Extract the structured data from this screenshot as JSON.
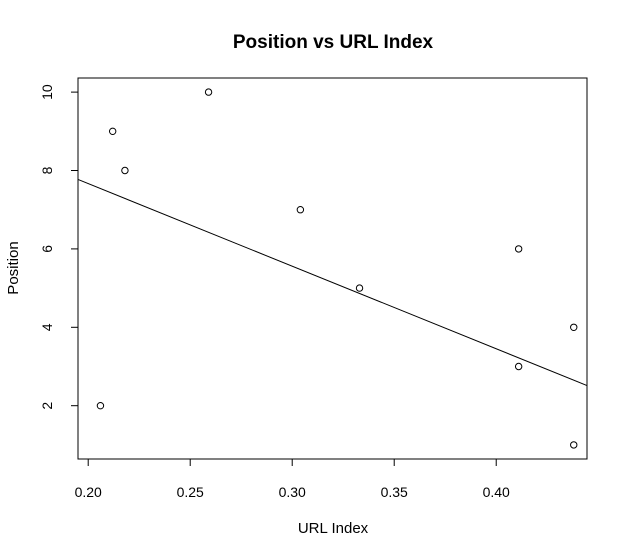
{
  "chart_data": {
    "type": "scatter",
    "title": "Position vs URL Index",
    "xlabel": "URL Index",
    "ylabel": "Position",
    "xlim": [
      0.195,
      0.4445
    ],
    "ylim": [
      0.64,
      10.36
    ],
    "x_ticks": [
      "0.20",
      "0.25",
      "0.30",
      "0.35",
      "0.40"
    ],
    "y_ticks": [
      "2",
      "4",
      "6",
      "8",
      "10"
    ],
    "points": [
      {
        "x": 0.206,
        "y": 2
      },
      {
        "x": 0.212,
        "y": 9
      },
      {
        "x": 0.218,
        "y": 8
      },
      {
        "x": 0.259,
        "y": 10
      },
      {
        "x": 0.304,
        "y": 7
      },
      {
        "x": 0.333,
        "y": 5
      },
      {
        "x": 0.411,
        "y": 6
      },
      {
        "x": 0.411,
        "y": 3
      },
      {
        "x": 0.438,
        "y": 4
      },
      {
        "x": 0.438,
        "y": 1
      }
    ],
    "fit_line": {
      "intercept": 11.88,
      "slope": -21.07
    },
    "grid": false,
    "legend": "none"
  }
}
